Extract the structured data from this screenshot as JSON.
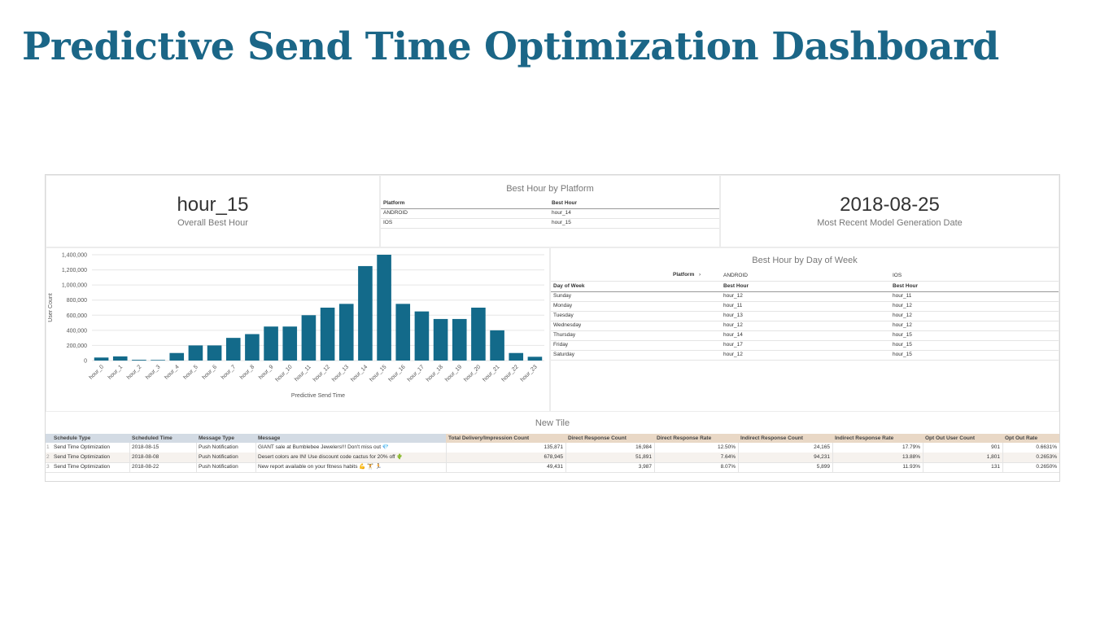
{
  "header": {
    "title": "Predictive Send Time Optimization Dashboard"
  },
  "tiles": {
    "best_hour": {
      "value": "hour_15",
      "label": "Overall Best Hour"
    },
    "model_date": {
      "value": "2018-08-25",
      "label": "Most Recent Model Generation Date"
    }
  },
  "platform_table": {
    "title": "Best Hour by Platform",
    "headers": [
      "Platform",
      "Best Hour"
    ],
    "rows": [
      [
        "ANDROID",
        "hour_14"
      ],
      [
        "IOS",
        "hour_15"
      ]
    ]
  },
  "dow_table": {
    "title": "Best Hour by Day of Week",
    "pivot_label": "Platform",
    "pivots": [
      "ANDROID",
      "IOS"
    ],
    "headers": [
      "Day of Week",
      "Best Hour",
      "Best Hour"
    ],
    "rows": [
      [
        "Sunday",
        "hour_12",
        "hour_11"
      ],
      [
        "Monday",
        "hour_11",
        "hour_12"
      ],
      [
        "Tuesday",
        "hour_13",
        "hour_12"
      ],
      [
        "Wednesday",
        "hour_12",
        "hour_12"
      ],
      [
        "Thursday",
        "hour_14",
        "hour_15"
      ],
      [
        "Friday",
        "hour_17",
        "hour_15"
      ],
      [
        "Saturday",
        "hour_12",
        "hour_15"
      ]
    ]
  },
  "schedule_table": {
    "title": "New Tile",
    "row_numbers": [
      "1",
      "2",
      "3"
    ],
    "headers": [
      "Schedule Type",
      "Scheduled Time",
      "Message Type",
      "Message",
      "Total Delivery/Impression Count",
      "Direct Response Count",
      "Direct Response Rate",
      "Indirect Response Count",
      "Indirect Response Rate",
      "Opt Out User Count",
      "Opt Out Rate"
    ],
    "rows": [
      [
        "Send Time Optimization",
        "2018-08-15",
        "Push Notification",
        "GIANT sale at Bumblebee Jewelers!!! Don't miss out 💎",
        "135,871",
        "16,984",
        "12.50%",
        "24,165",
        "17.79%",
        "901",
        "0.6631%"
      ],
      [
        "Send Time Optimization",
        "2018-08-08",
        "Push Notification",
        "Desert colors are IN! Use discount code cactus for 20% off 🌵",
        "678,945",
        "51,891",
        "7.64%",
        "94,231",
        "13.88%",
        "1,801",
        "0.2653%"
      ],
      [
        "Send Time Optimization",
        "2018-08-22",
        "Push Notification",
        "New report available on your fitness habits 💪 🏋 🏃",
        "49,431",
        "3,987",
        "8.07%",
        "5,899",
        "11.93%",
        "131",
        "0.2650%"
      ]
    ]
  },
  "chart_data": {
    "type": "bar",
    "x_label": "Predictive Send Time",
    "y_label": "User Count",
    "color": "#136a8a",
    "grid": true,
    "categories": [
      "hour_0",
      "hour_1",
      "hour_2",
      "hour_3",
      "hour_4",
      "hour_5",
      "hour_6",
      "hour_7",
      "hour_8",
      "hour_9",
      "hour_10",
      "hour_11",
      "hour_12",
      "hour_13",
      "hour_14",
      "hour_15",
      "hour_16",
      "hour_17",
      "hour_18",
      "hour_19",
      "hour_20",
      "hour_21",
      "hour_22",
      "hour_23"
    ],
    "values": [
      40000,
      55000,
      10000,
      8000,
      100000,
      200000,
      200000,
      300000,
      350000,
      450000,
      450000,
      600000,
      700000,
      750000,
      1250000,
      1400000,
      750000,
      650000,
      550000,
      550000,
      700000,
      400000,
      100000,
      50000
    ],
    "ylim": [
      0,
      1400000
    ],
    "yticks": [
      0,
      {
        "value": 200000,
        "label": "200,000"
      },
      {
        "value": 400000,
        "label": "400,000"
      },
      {
        "value": 600000,
        "label": "600,000"
      },
      {
        "value": 800000,
        "label": "800,000"
      },
      {
        "value": 1000000,
        "label": "1,000,000"
      },
      {
        "value": 1200000,
        "label": "1,200,000"
      },
      {
        "value": 1400000,
        "label": "1,400,000"
      }
    ]
  }
}
